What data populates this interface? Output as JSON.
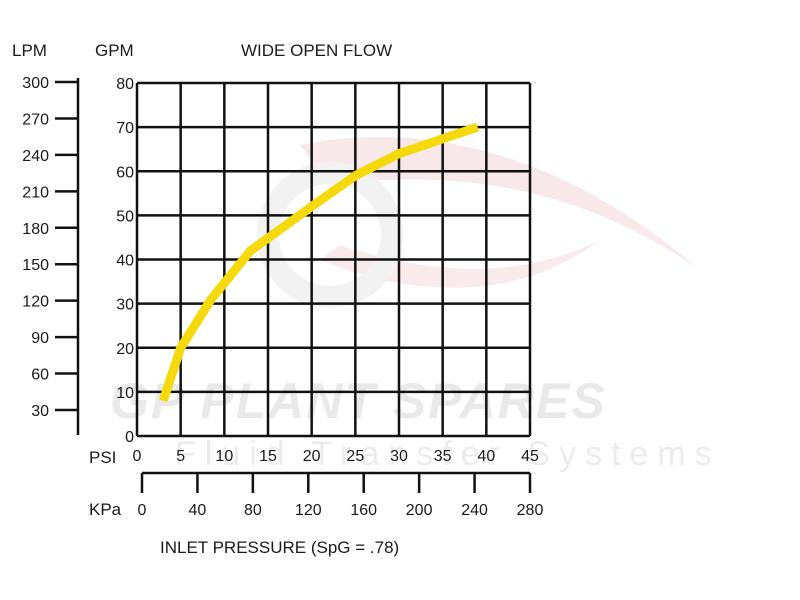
{
  "chart_data": {
    "type": "line",
    "title": "WIDE OPEN FLOW",
    "xlabel": "INLET PRESSURE (SpG = .78)",
    "ylabel_left": "LPM",
    "ylabel_right": "GPM",
    "x_axis_primary": {
      "label": "PSI",
      "ticks": [
        "0",
        "5",
        "10",
        "15",
        "20",
        "25",
        "30",
        "35",
        "40",
        "45"
      ],
      "range": [
        0,
        45
      ]
    },
    "x_axis_secondary": {
      "label": "KPa",
      "ticks": [
        "0",
        "40",
        "80",
        "120",
        "160",
        "200",
        "240",
        "280"
      ]
    },
    "y_axis_gpm": {
      "ticks": [
        "0",
        "10",
        "20",
        "30",
        "40",
        "50",
        "60",
        "70",
        "80"
      ],
      "range": [
        0,
        80
      ]
    },
    "y_axis_lpm": {
      "ticks": [
        "30",
        "60",
        "90",
        "120",
        "150",
        "180",
        "210",
        "240",
        "270",
        "300"
      ]
    },
    "grid": true,
    "series": [
      {
        "color": "#f5d90a",
        "x": [
          3,
          5,
          8.5,
          13,
          20,
          25,
          30,
          36,
          39
        ],
        "y": [
          8,
          20,
          31,
          42,
          52,
          59,
          64,
          68,
          70
        ]
      }
    ]
  },
  "watermark": {
    "line1": "GP PLANT SPARES",
    "line2": "Fluid Transfer Systems"
  }
}
